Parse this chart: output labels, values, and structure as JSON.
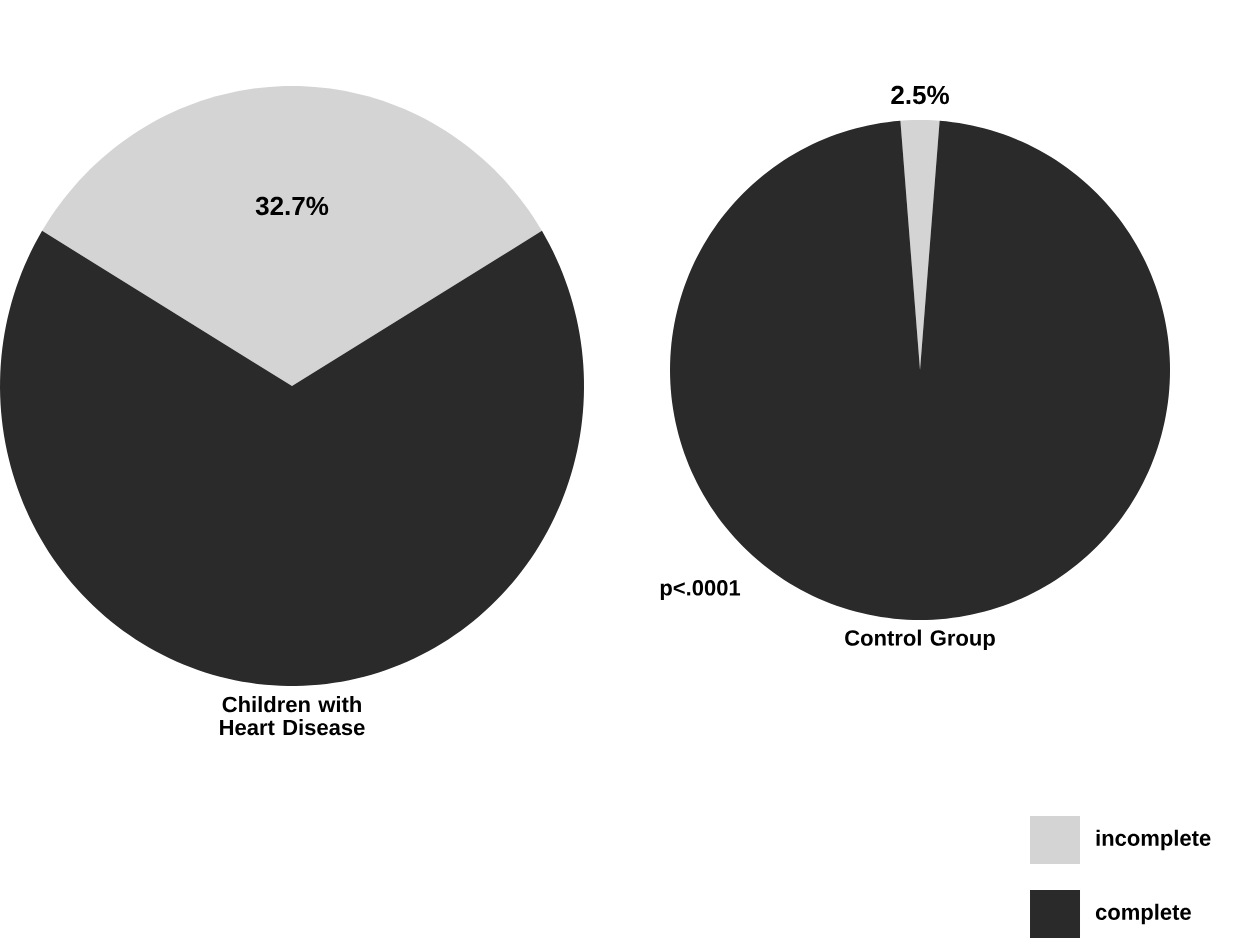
{
  "chart_data": [
    {
      "type": "pie",
      "title": "Children with Heart Disease",
      "categories": [
        "incomplete",
        "complete"
      ],
      "values": [
        32.7,
        67.3
      ],
      "colors": [
        "#d4d4d4",
        "#2a2a2a"
      ],
      "value_labels": [
        "32.7%",
        null
      ],
      "annotations": [
        "p<.0001"
      ],
      "legend": "bottom right"
    },
    {
      "type": "pie",
      "title": "Control Group",
      "categories": [
        null,
        null
      ],
      "values": [
        2.5,
        97.5
      ],
      "colors": [
        "#d4d4d4",
        "#2a2a2a"
      ],
      "value_labels": [
        "2.5%",
        null
      ]
    }
  ]
}
